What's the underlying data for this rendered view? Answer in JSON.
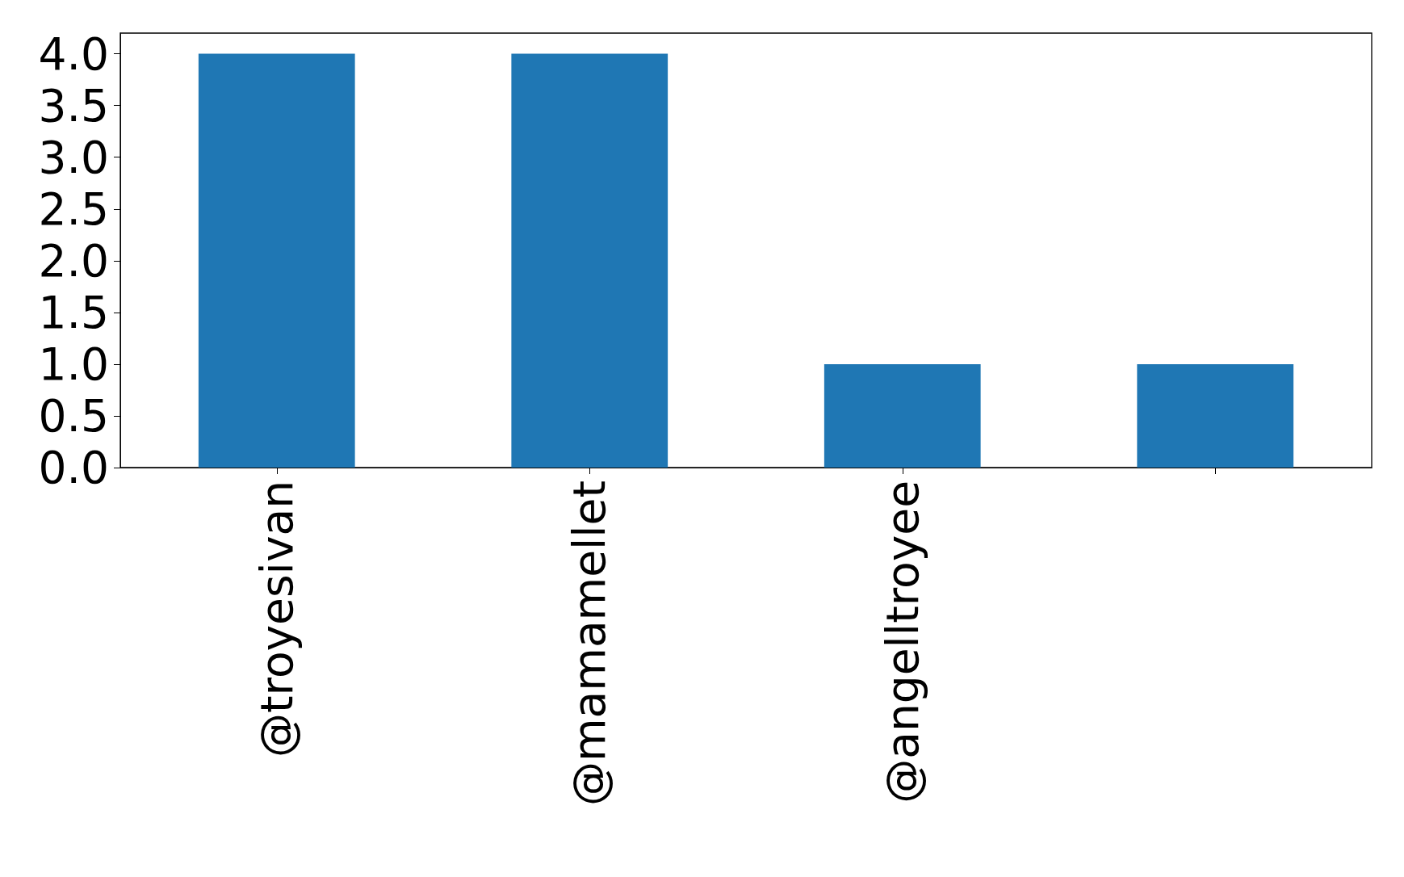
{
  "chart_data": {
    "type": "bar",
    "categories": [
      "@troyesivan",
      "@mamamellet",
      "@angelltroyee",
      null
    ],
    "values": [
      4,
      4,
      1,
      1
    ],
    "color": "#1f77b4",
    "ylim": [
      0,
      4.2
    ],
    "yticks": [
      {
        "value": 0,
        "label": "0.0"
      },
      {
        "value": 0.5,
        "label": "0.5"
      },
      {
        "value": 1,
        "label": "1.0"
      },
      {
        "value": 1.5,
        "label": "1.5"
      },
      {
        "value": 2,
        "label": "2.0"
      },
      {
        "value": 2.5,
        "label": "2.5"
      },
      {
        "value": 3,
        "label": "3.0"
      },
      {
        "value": 3.5,
        "label": "3.5"
      },
      {
        "value": 4,
        "label": "4.0"
      }
    ],
    "grid": false
  }
}
